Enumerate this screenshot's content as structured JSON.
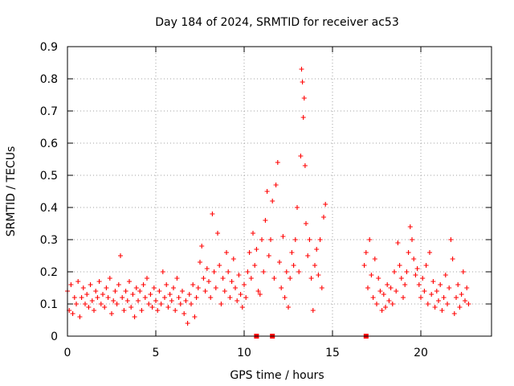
{
  "chart_data": {
    "type": "scatter",
    "title": "Day 184 of 2024, SRMTID for receiver ac53",
    "xlabel": "GPS time / hours",
    "ylabel": "SRMTID / TECUs",
    "xlim": [
      0,
      24
    ],
    "ylim": [
      0,
      0.9
    ],
    "x_ticks": [
      "0",
      "5",
      "10",
      "15",
      "20"
    ],
    "y_ticks": [
      "0",
      "0.1",
      "0.2",
      "0.3",
      "0.4",
      "0.5",
      "0.6",
      "0.7",
      "0.8",
      "0.9"
    ],
    "grid": true,
    "marker": "+",
    "series_color": "#ff0000",
    "series": [
      {
        "name": "SRMTID",
        "points": [
          [
            0.0,
            0.14
          ],
          [
            0.1,
            0.08
          ],
          [
            0.2,
            0.16
          ],
          [
            0.3,
            0.07
          ],
          [
            0.4,
            0.12
          ],
          [
            0.5,
            0.1
          ],
          [
            0.6,
            0.17
          ],
          [
            0.7,
            0.06
          ],
          [
            0.8,
            0.12
          ],
          [
            0.9,
            0.15
          ],
          [
            1.0,
            0.1
          ],
          [
            1.1,
            0.13
          ],
          [
            1.2,
            0.09
          ],
          [
            1.3,
            0.16
          ],
          [
            1.4,
            0.11
          ],
          [
            1.5,
            0.08
          ],
          [
            1.6,
            0.14
          ],
          [
            1.7,
            0.12
          ],
          [
            1.8,
            0.17
          ],
          [
            1.9,
            0.1
          ],
          [
            2.0,
            0.13
          ],
          [
            2.1,
            0.09
          ],
          [
            2.2,
            0.15
          ],
          [
            2.3,
            0.12
          ],
          [
            2.4,
            0.18
          ],
          [
            2.5,
            0.07
          ],
          [
            2.6,
            0.11
          ],
          [
            2.7,
            0.14
          ],
          [
            2.8,
            0.1
          ],
          [
            2.9,
            0.16
          ],
          [
            3.0,
            0.25
          ],
          [
            3.1,
            0.12
          ],
          [
            3.2,
            0.08
          ],
          [
            3.3,
            0.14
          ],
          [
            3.4,
            0.11
          ],
          [
            3.5,
            0.17
          ],
          [
            3.6,
            0.09
          ],
          [
            3.7,
            0.13
          ],
          [
            3.8,
            0.06
          ],
          [
            3.9,
            0.15
          ],
          [
            4.0,
            0.11
          ],
          [
            4.1,
            0.14
          ],
          [
            4.2,
            0.08
          ],
          [
            4.3,
            0.16
          ],
          [
            4.4,
            0.12
          ],
          [
            4.5,
            0.18
          ],
          [
            4.6,
            0.1
          ],
          [
            4.7,
            0.13
          ],
          [
            4.8,
            0.09
          ],
          [
            4.9,
            0.15
          ],
          [
            5.0,
            0.11
          ],
          [
            5.1,
            0.08
          ],
          [
            5.2,
            0.14
          ],
          [
            5.3,
            0.1
          ],
          [
            5.4,
            0.2
          ],
          [
            5.5,
            0.12
          ],
          [
            5.6,
            0.16
          ],
          [
            5.7,
            0.09
          ],
          [
            5.8,
            0.13
          ],
          [
            5.9,
            0.11
          ],
          [
            6.0,
            0.15
          ],
          [
            6.1,
            0.08
          ],
          [
            6.2,
            0.18
          ],
          [
            6.3,
            0.12
          ],
          [
            6.4,
            0.1
          ],
          [
            6.5,
            0.14
          ],
          [
            6.6,
            0.07
          ],
          [
            6.7,
            0.11
          ],
          [
            6.8,
            0.04
          ],
          [
            6.9,
            0.13
          ],
          [
            7.0,
            0.1
          ],
          [
            7.1,
            0.16
          ],
          [
            7.2,
            0.06
          ],
          [
            7.3,
            0.12
          ],
          [
            7.4,
            0.15
          ],
          [
            7.5,
            0.23
          ],
          [
            7.6,
            0.28
          ],
          [
            7.7,
            0.18
          ],
          [
            7.8,
            0.14
          ],
          [
            7.9,
            0.21
          ],
          [
            8.0,
            0.17
          ],
          [
            8.1,
            0.12
          ],
          [
            8.2,
            0.38
          ],
          [
            8.3,
            0.2
          ],
          [
            8.4,
            0.15
          ],
          [
            8.5,
            0.32
          ],
          [
            8.6,
            0.22
          ],
          [
            8.7,
            0.1
          ],
          [
            8.8,
            0.18
          ],
          [
            8.9,
            0.14
          ],
          [
            9.0,
            0.26
          ],
          [
            9.1,
            0.2
          ],
          [
            9.2,
            0.12
          ],
          [
            9.3,
            0.17
          ],
          [
            9.4,
            0.24
          ],
          [
            9.5,
            0.15
          ],
          [
            9.6,
            0.11
          ],
          [
            9.7,
            0.19
          ],
          [
            9.8,
            0.13
          ],
          [
            9.9,
            0.09
          ],
          [
            10.0,
            0.16
          ],
          [
            10.1,
            0.12
          ],
          [
            10.2,
            0.2
          ],
          [
            10.3,
            0.26
          ],
          [
            10.4,
            0.18
          ],
          [
            10.5,
            0.32
          ],
          [
            10.6,
            0.22
          ],
          [
            10.7,
            0.27
          ],
          [
            10.8,
            0.14
          ],
          [
            10.9,
            0.13
          ],
          [
            11.0,
            0.3
          ],
          [
            11.1,
            0.2
          ],
          [
            11.2,
            0.36
          ],
          [
            11.3,
            0.45
          ],
          [
            11.4,
            0.25
          ],
          [
            11.5,
            0.3
          ],
          [
            11.6,
            0.42
          ],
          [
            11.7,
            0.18
          ],
          [
            11.8,
            0.47
          ],
          [
            11.9,
            0.54
          ],
          [
            12.0,
            0.23
          ],
          [
            12.1,
            0.15
          ],
          [
            12.2,
            0.31
          ],
          [
            12.3,
            0.12
          ],
          [
            12.4,
            0.2
          ],
          [
            12.5,
            0.09
          ],
          [
            12.6,
            0.18
          ],
          [
            12.7,
            0.26
          ],
          [
            12.8,
            0.22
          ],
          [
            12.9,
            0.3
          ],
          [
            13.0,
            0.4
          ],
          [
            13.1,
            0.2
          ],
          [
            13.2,
            0.56
          ],
          [
            13.25,
            0.83
          ],
          [
            13.3,
            0.79
          ],
          [
            13.35,
            0.68
          ],
          [
            13.4,
            0.74
          ],
          [
            13.45,
            0.53
          ],
          [
            13.5,
            0.35
          ],
          [
            13.6,
            0.25
          ],
          [
            13.7,
            0.3
          ],
          [
            13.8,
            0.18
          ],
          [
            13.9,
            0.08
          ],
          [
            14.0,
            0.22
          ],
          [
            14.1,
            0.27
          ],
          [
            14.2,
            0.19
          ],
          [
            14.3,
            0.3
          ],
          [
            14.4,
            0.15
          ],
          [
            14.5,
            0.37
          ],
          [
            14.6,
            0.41
          ],
          [
            16.8,
            0.22
          ],
          [
            16.9,
            0.26
          ],
          [
            17.0,
            0.15
          ],
          [
            17.1,
            0.3
          ],
          [
            17.2,
            0.19
          ],
          [
            17.3,
            0.12
          ],
          [
            17.4,
            0.24
          ],
          [
            17.5,
            0.1
          ],
          [
            17.6,
            0.18
          ],
          [
            17.7,
            0.14
          ],
          [
            17.8,
            0.08
          ],
          [
            17.9,
            0.13
          ],
          [
            18.0,
            0.09
          ],
          [
            18.1,
            0.16
          ],
          [
            18.2,
            0.11
          ],
          [
            18.3,
            0.15
          ],
          [
            18.4,
            0.1
          ],
          [
            18.5,
            0.2
          ],
          [
            18.6,
            0.14
          ],
          [
            18.7,
            0.29
          ],
          [
            18.8,
            0.22
          ],
          [
            18.9,
            0.18
          ],
          [
            19.0,
            0.12
          ],
          [
            19.1,
            0.16
          ],
          [
            19.2,
            0.2
          ],
          [
            19.3,
            0.26
          ],
          [
            19.4,
            0.34
          ],
          [
            19.5,
            0.3
          ],
          [
            19.6,
            0.24
          ],
          [
            19.7,
            0.19
          ],
          [
            19.8,
            0.21
          ],
          [
            19.9,
            0.16
          ],
          [
            20.0,
            0.12
          ],
          [
            20.1,
            0.18
          ],
          [
            20.2,
            0.14
          ],
          [
            20.3,
            0.22
          ],
          [
            20.4,
            0.1
          ],
          [
            20.5,
            0.26
          ],
          [
            20.6,
            0.13
          ],
          [
            20.7,
            0.17
          ],
          [
            20.8,
            0.09
          ],
          [
            20.9,
            0.14
          ],
          [
            21.0,
            0.11
          ],
          [
            21.1,
            0.16
          ],
          [
            21.2,
            0.08
          ],
          [
            21.3,
            0.12
          ],
          [
            21.4,
            0.19
          ],
          [
            21.5,
            0.1
          ],
          [
            21.6,
            0.15
          ],
          [
            21.7,
            0.3
          ],
          [
            21.8,
            0.24
          ],
          [
            21.9,
            0.07
          ],
          [
            22.0,
            0.12
          ],
          [
            22.1,
            0.16
          ],
          [
            22.2,
            0.09
          ],
          [
            22.3,
            0.13
          ],
          [
            22.4,
            0.2
          ],
          [
            22.5,
            0.11
          ],
          [
            22.6,
            0.15
          ],
          [
            22.7,
            0.1
          ]
        ],
        "zero_markers": [
          10.7,
          11.6,
          16.9
        ]
      }
    ]
  }
}
